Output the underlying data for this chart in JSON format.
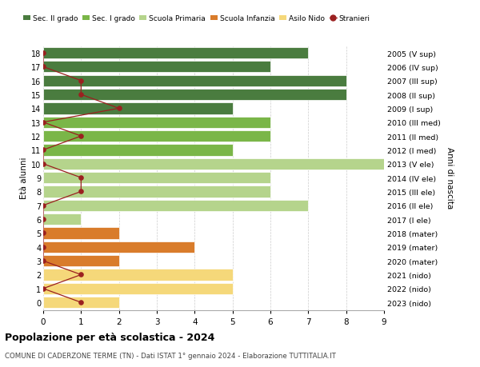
{
  "ages": [
    18,
    17,
    16,
    15,
    14,
    13,
    12,
    11,
    10,
    9,
    8,
    7,
    6,
    5,
    4,
    3,
    2,
    1,
    0
  ],
  "right_labels": [
    "2005 (V sup)",
    "2006 (IV sup)",
    "2007 (III sup)",
    "2008 (II sup)",
    "2009 (I sup)",
    "2010 (III med)",
    "2011 (II med)",
    "2012 (I med)",
    "2013 (V ele)",
    "2014 (IV ele)",
    "2015 (III ele)",
    "2016 (II ele)",
    "2017 (I ele)",
    "2018 (mater)",
    "2019 (mater)",
    "2020 (mater)",
    "2021 (nido)",
    "2022 (nido)",
    "2023 (nido)"
  ],
  "bar_values": [
    7,
    6,
    8,
    8,
    5,
    6,
    6,
    5,
    9,
    6,
    6,
    7,
    1,
    2,
    4,
    2,
    5,
    5,
    2
  ],
  "bar_colors": [
    "#4a7c3f",
    "#4a7c3f",
    "#4a7c3f",
    "#4a7c3f",
    "#4a7c3f",
    "#7ab648",
    "#7ab648",
    "#7ab648",
    "#b5d48c",
    "#b5d48c",
    "#b5d48c",
    "#b5d48c",
    "#b5d48c",
    "#d97c2b",
    "#d97c2b",
    "#d97c2b",
    "#f5d87a",
    "#f5d87a",
    "#f5d87a"
  ],
  "stranieri_values": [
    0,
    0,
    1,
    1,
    2,
    0,
    1,
    0,
    0,
    1,
    1,
    0,
    0,
    0,
    0,
    0,
    1,
    0,
    1
  ],
  "stranieri_color": "#9b2020",
  "title": "Popolazione per età scolastica - 2024",
  "subtitle": "COMUNE DI CADERZONE TERME (TN) - Dati ISTAT 1° gennaio 2024 - Elaborazione TUTTITALIA.IT",
  "ylabel_left": "Età alunni",
  "ylabel_right": "Anni di nascita",
  "xlim": [
    0,
    9
  ],
  "xticks": [
    0,
    1,
    2,
    3,
    4,
    5,
    6,
    7,
    8,
    9
  ],
  "legend_labels": [
    "Sec. II grado",
    "Sec. I grado",
    "Scuola Primaria",
    "Scuola Infanzia",
    "Asilo Nido",
    "Stranieri"
  ],
  "legend_colors": [
    "#4a7c3f",
    "#7ab648",
    "#b5d48c",
    "#d97c2b",
    "#f5d87a",
    "#9b2020"
  ],
  "bg_color": "#ffffff",
  "bar_height": 0.82,
  "grid_color": "#cccccc"
}
